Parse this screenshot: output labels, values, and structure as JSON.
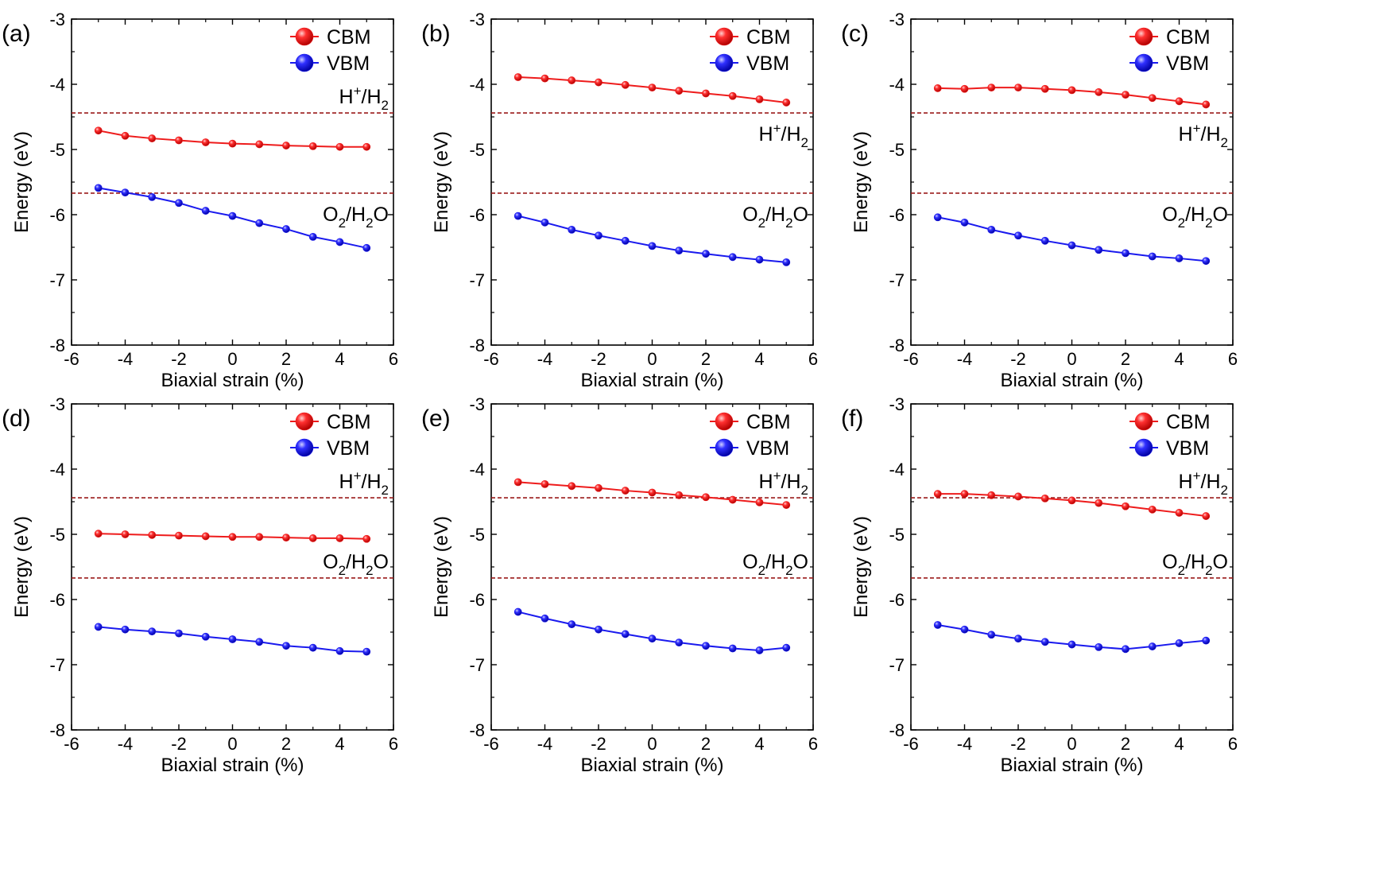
{
  "figure": {
    "x_tick_labels": [
      "-6",
      "-4",
      "-2",
      "0",
      "2",
      "4",
      "6"
    ],
    "y_tick_labels": [
      "-3",
      "-4",
      "-5",
      "-6",
      "-7",
      "-8"
    ]
  },
  "styles": {
    "cbm_color": "#ee1c1c",
    "vbm_color": "#1a1aee",
    "reference_line_color": "#9b1b1b",
    "axis_color": "#000000"
  },
  "reference_levels": [
    {
      "label_parts": [
        "H",
        "+",
        "/H",
        "2",
        ""
      ],
      "energy": -4.44
    },
    {
      "label_parts": [
        "O",
        "2",
        "/H",
        "2",
        "O"
      ],
      "energy": -5.67
    }
  ],
  "chart_data": [
    {
      "panel": "(a)",
      "type": "line",
      "xlabel": "Biaxial strain (%)",
      "ylabel": "Energy (eV)",
      "xlim": [
        -6,
        6
      ],
      "ylim": [
        -8,
        -3
      ],
      "legend": "top-right",
      "x": [
        -5,
        -4,
        -3,
        -2,
        -1,
        0,
        1,
        2,
        3,
        4,
        5
      ],
      "series": [
        {
          "name": "CBM",
          "values": [
            -4.71,
            -4.79,
            -4.83,
            -4.86,
            -4.89,
            -4.91,
            -4.92,
            -4.94,
            -4.95,
            -4.96,
            -4.96
          ]
        },
        {
          "name": "VBM",
          "values": [
            -5.59,
            -5.66,
            -5.73,
            -5.82,
            -5.94,
            -6.02,
            -6.13,
            -6.22,
            -6.34,
            -6.42,
            -6.51
          ]
        }
      ],
      "reference_lines": [
        -4.44,
        -5.67
      ],
      "h_label_pos": "above",
      "o_label_pos": "below"
    },
    {
      "panel": "(b)",
      "type": "line",
      "xlabel": "Biaxial strain (%)",
      "ylabel": "Energy (eV)",
      "xlim": [
        -6,
        6
      ],
      "ylim": [
        -8,
        -3
      ],
      "legend": "top-right",
      "x": [
        -5,
        -4,
        -3,
        -2,
        -1,
        0,
        1,
        2,
        3,
        4,
        5
      ],
      "series": [
        {
          "name": "CBM",
          "values": [
            -3.89,
            -3.91,
            -3.94,
            -3.97,
            -4.01,
            -4.05,
            -4.1,
            -4.14,
            -4.18,
            -4.23,
            -4.28
          ]
        },
        {
          "name": "VBM",
          "values": [
            -6.02,
            -6.12,
            -6.23,
            -6.32,
            -6.4,
            -6.48,
            -6.55,
            -6.6,
            -6.65,
            -6.69,
            -6.73
          ]
        }
      ],
      "reference_lines": [
        -4.44,
        -5.67
      ],
      "h_label_pos": "below",
      "o_label_pos": "below"
    },
    {
      "panel": "(c)",
      "type": "line",
      "xlabel": "Biaxial strain (%)",
      "ylabel": "Energy (eV)",
      "xlim": [
        -6,
        6
      ],
      "ylim": [
        -8,
        -3
      ],
      "legend": "top-right",
      "x": [
        -5,
        -4,
        -3,
        -2,
        -1,
        0,
        1,
        2,
        3,
        4,
        5
      ],
      "series": [
        {
          "name": "CBM",
          "values": [
            -4.06,
            -4.07,
            -4.05,
            -4.05,
            -4.07,
            -4.09,
            -4.12,
            -4.16,
            -4.21,
            -4.26,
            -4.31
          ]
        },
        {
          "name": "VBM",
          "values": [
            -6.04,
            -6.12,
            -6.23,
            -6.32,
            -6.4,
            -6.47,
            -6.54,
            -6.59,
            -6.64,
            -6.67,
            -6.71
          ]
        }
      ],
      "reference_lines": [
        -4.44,
        -5.67
      ],
      "h_label_pos": "below",
      "o_label_pos": "below"
    },
    {
      "panel": "(d)",
      "type": "line",
      "xlabel": "Biaxial strain (%)",
      "ylabel": "Energy (eV)",
      "xlim": [
        -6,
        6
      ],
      "ylim": [
        -8,
        -3
      ],
      "legend": "top-right",
      "x": [
        -5,
        -4,
        -3,
        -2,
        -1,
        0,
        1,
        2,
        3,
        4,
        5
      ],
      "series": [
        {
          "name": "CBM",
          "values": [
            -4.99,
            -5.0,
            -5.01,
            -5.02,
            -5.03,
            -5.04,
            -5.04,
            -5.05,
            -5.06,
            -5.06,
            -5.07
          ]
        },
        {
          "name": "VBM",
          "values": [
            -6.42,
            -6.46,
            -6.49,
            -6.52,
            -6.57,
            -6.61,
            -6.65,
            -6.71,
            -6.74,
            -6.79,
            -6.8
          ]
        }
      ],
      "reference_lines": [
        -4.44,
        -5.67
      ],
      "h_label_pos": "above",
      "o_label_pos": "above"
    },
    {
      "panel": "(e)",
      "type": "line",
      "xlabel": "Biaxial strain (%)",
      "ylabel": "Energy (eV)",
      "xlim": [
        -6,
        6
      ],
      "ylim": [
        -8,
        -3
      ],
      "legend": "top-right",
      "x": [
        -5,
        -4,
        -3,
        -2,
        -1,
        0,
        1,
        2,
        3,
        4,
        5
      ],
      "series": [
        {
          "name": "CBM",
          "values": [
            -4.2,
            -4.23,
            -4.26,
            -4.29,
            -4.33,
            -4.36,
            -4.4,
            -4.43,
            -4.47,
            -4.51,
            -4.55
          ]
        },
        {
          "name": "VBM",
          "values": [
            -6.19,
            -6.29,
            -6.38,
            -6.46,
            -6.53,
            -6.6,
            -6.66,
            -6.71,
            -6.75,
            -6.78,
            -6.74
          ]
        }
      ],
      "reference_lines": [
        -4.44,
        -5.67
      ],
      "h_label_pos": "above",
      "o_label_pos": "above"
    },
    {
      "panel": "(f)",
      "type": "line",
      "xlabel": "Biaxial strain (%)",
      "ylabel": "Energy (eV)",
      "xlim": [
        -6,
        6
      ],
      "ylim": [
        -8,
        -3
      ],
      "legend": "top-right",
      "x": [
        -5,
        -4,
        -3,
        -2,
        -1,
        0,
        1,
        2,
        3,
        4,
        5
      ],
      "series": [
        {
          "name": "CBM",
          "values": [
            -4.38,
            -4.38,
            -4.4,
            -4.42,
            -4.45,
            -4.48,
            -4.52,
            -4.57,
            -4.62,
            -4.67,
            -4.72
          ]
        },
        {
          "name": "VBM",
          "values": [
            -6.39,
            -6.46,
            -6.54,
            -6.6,
            -6.65,
            -6.69,
            -6.73,
            -6.76,
            -6.72,
            -6.67,
            -6.63
          ]
        }
      ],
      "reference_lines": [
        -4.44,
        -5.67
      ],
      "h_label_pos": "above",
      "o_label_pos": "above"
    }
  ]
}
